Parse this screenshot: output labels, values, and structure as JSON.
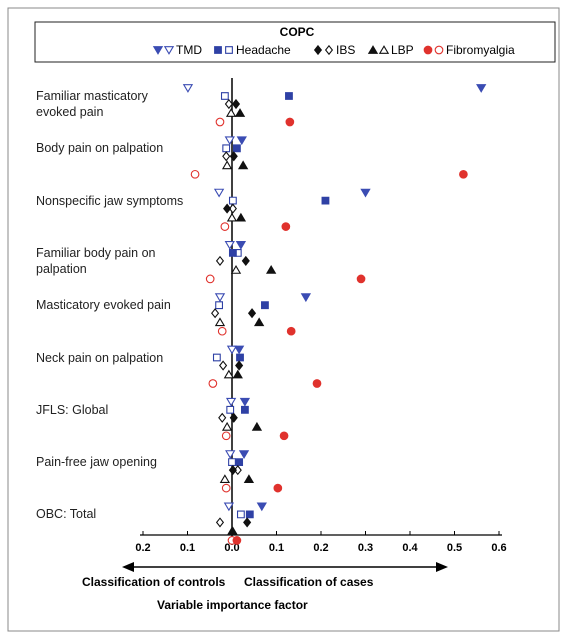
{
  "chart_data": {
    "type": "dot",
    "legend_title": "COPC",
    "xlabel": "Variable importance factor",
    "annotations": [
      "Classification of controls",
      "Classification of cases"
    ],
    "categories": [
      "Familiar masticatory evoked pain",
      "Body pain on palpation",
      "Nonspecific jaw symptoms",
      "Familiar body pain on palpation",
      "Masticatory evoked pain",
      "Neck pain on palpation",
      "JFLS: Global",
      "Pain-free jaw opening",
      "OBC: Total"
    ],
    "xlim": [
      -0.2,
      0.6
    ],
    "xticks": [
      {
        "value": -0.2,
        "label": "0.2"
      },
      {
        "value": -0.1,
        "label": "0.1"
      },
      {
        "value": 0.0,
        "label": "0.0"
      },
      0.1,
      0.2,
      0.3,
      0.4,
      0.5,
      0.6
    ],
    "series": [
      {
        "name": "TMD",
        "color": "#3b4cb3",
        "marker": "triangle-down",
        "values": [
          0.56,
          0.022,
          0.3,
          0.02,
          0.166,
          0.016,
          0.029,
          0.027,
          0.067
        ],
        "control_values": [
          -0.099,
          -0.005,
          -0.029,
          -0.005,
          -0.027,
          0.0,
          -0.002,
          -0.004,
          -0.007
        ]
      },
      {
        "name": "Headache",
        "color": "#2f41a5",
        "marker": "square",
        "values": [
          0.128,
          0.011,
          0.21,
          0.002,
          0.074,
          0.018,
          0.029,
          0.016,
          0.04
        ],
        "control_values": [
          -0.016,
          -0.013,
          0.002,
          0.013,
          -0.029,
          -0.034,
          -0.004,
          0.0,
          0.02
        ]
      },
      {
        "name": "IBS",
        "color": "#111111",
        "marker": "diamond",
        "values": [
          0.009,
          0.004,
          -0.011,
          0.031,
          0.045,
          0.016,
          0.004,
          0.002,
          0.034
        ],
        "control_values": [
          -0.007,
          -0.013,
          0.002,
          -0.027,
          -0.038,
          -0.02,
          -0.022,
          0.013,
          -0.027
        ]
      },
      {
        "name": "LBP",
        "color": "#111111",
        "marker": "triangle-up",
        "values": [
          0.018,
          0.025,
          0.02,
          0.088,
          0.061,
          0.013,
          0.056,
          0.038,
          0.002
        ],
        "control_values": [
          -0.002,
          -0.011,
          0.0,
          0.009,
          -0.027,
          -0.007,
          -0.011,
          -0.016,
          0.0
        ]
      },
      {
        "name": "Fibromyalgia",
        "color": "#e0322d",
        "marker": "circle",
        "values": [
          0.13,
          0.52,
          0.121,
          0.29,
          0.133,
          0.191,
          0.117,
          0.103,
          0.011
        ],
        "control_values": [
          -0.027,
          -0.083,
          -0.016,
          -0.049,
          -0.022,
          -0.043,
          -0.013,
          -0.013,
          0.0
        ]
      }
    ]
  }
}
